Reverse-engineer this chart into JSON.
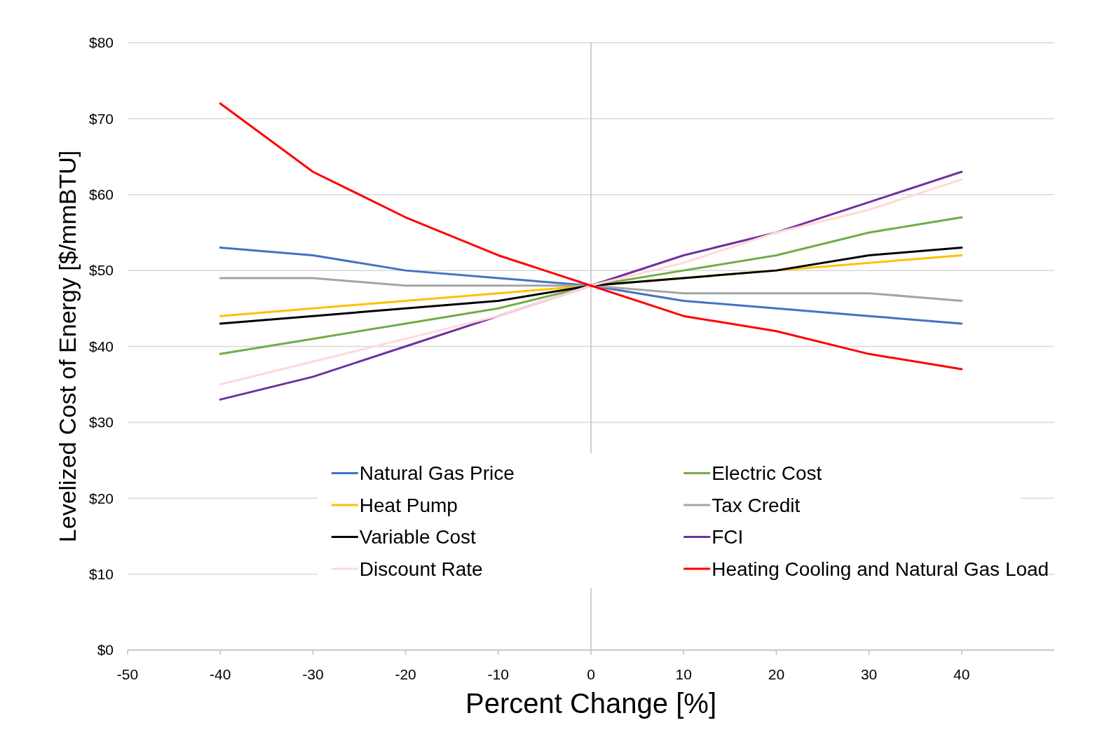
{
  "chart_data": {
    "type": "line",
    "xlabel": "Percent Change [%]",
    "ylabel": "Levelized Cost of Energy [$/mmBTU]",
    "x": [
      -40,
      -30,
      -20,
      -10,
      0,
      10,
      20,
      30,
      40
    ],
    "xlim": [
      -50,
      50
    ],
    "xticks": [
      -50,
      -40,
      -30,
      -20,
      -10,
      0,
      10,
      20,
      30,
      40
    ],
    "ylim": [
      0,
      80
    ],
    "yticks": [
      {
        "value": 0,
        "label": "$0"
      },
      {
        "value": 10,
        "label": "$10"
      },
      {
        "value": 20,
        "label": "$20"
      },
      {
        "value": 30,
        "label": "$30"
      },
      {
        "value": 40,
        "label": "$40"
      },
      {
        "value": 50,
        "label": "$50"
      },
      {
        "value": 60,
        "label": "$60"
      },
      {
        "value": 70,
        "label": "$70"
      },
      {
        "value": 80,
        "label": "$80"
      }
    ],
    "grid": "y",
    "legend": "bottom",
    "marker": "none",
    "line_style": "solid",
    "ref_lines": [
      {
        "axis": "x",
        "value": 0,
        "color": "#bfbfbf"
      }
    ],
    "series": [
      {
        "name": "Natural Gas Price",
        "color": "#4472c4",
        "values": [
          53,
          52,
          50,
          49,
          48,
          46,
          45,
          44,
          43
        ]
      },
      {
        "name": "Electric Cost",
        "color": "#70ad47",
        "values": [
          39,
          41,
          43,
          45,
          48,
          50,
          52,
          55,
          57
        ]
      },
      {
        "name": "Heat Pump",
        "color": "#ffc000",
        "values": [
          44,
          45,
          46,
          47,
          48,
          49,
          50,
          51,
          52
        ]
      },
      {
        "name": "Tax Credit",
        "color": "#a5a5a5",
        "values": [
          49,
          49,
          48,
          48,
          48,
          47,
          47,
          47,
          46
        ]
      },
      {
        "name": "Variable Cost",
        "color": "#000000",
        "values": [
          43,
          44,
          45,
          46,
          48,
          49,
          50,
          52,
          53
        ]
      },
      {
        "name": "FCI",
        "color": "#7030a0",
        "values": [
          33,
          36,
          40,
          44,
          48,
          52,
          55,
          59,
          63
        ]
      },
      {
        "name": "Discount Rate",
        "color": "#ffd9d9",
        "values": [
          35,
          38,
          41,
          44,
          48,
          51,
          55,
          58,
          62
        ]
      },
      {
        "name": "Heating Cooling and Natural Gas Load",
        "color": "#ff0000",
        "values": [
          72,
          63,
          57,
          52,
          48,
          44,
          42,
          39,
          37
        ]
      }
    ]
  }
}
